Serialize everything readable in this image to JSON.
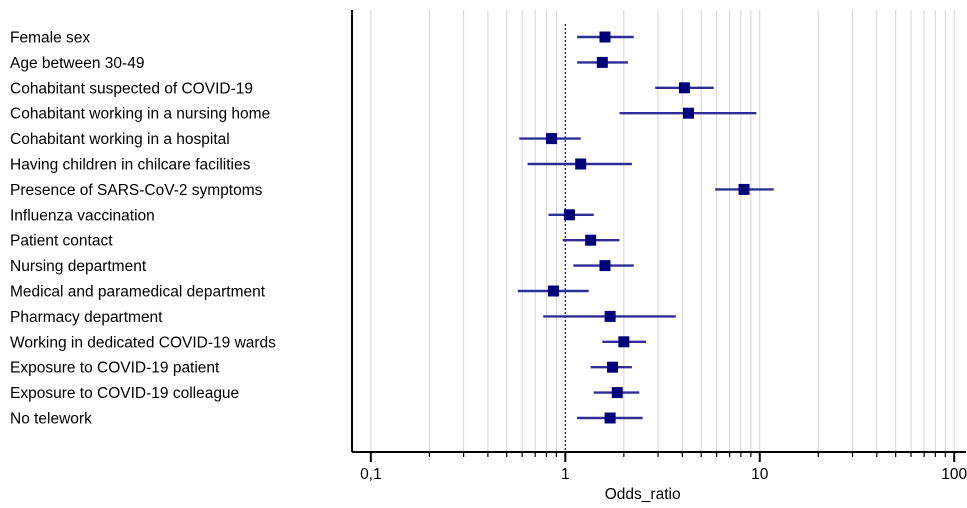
{
  "chart_data": {
    "type": "forest",
    "xlabel": "Odds_ratio",
    "xscale": "log",
    "xlim": [
      0.08,
      115
    ],
    "reference_line": 1,
    "x_ticks": [
      {
        "value": 0.1,
        "label": "0,1"
      },
      {
        "value": 1,
        "label": "1"
      },
      {
        "value": 10,
        "label": "10"
      },
      {
        "value": 100,
        "label": "100"
      }
    ],
    "grid": "vertical log minor lines",
    "colors": {
      "marker": "#00007a",
      "ci_line": "#2e2e96",
      "reference": "#1a1aa0",
      "grid": "#d4d4d4",
      "axis": "#000000"
    },
    "rows": [
      {
        "label": "Female sex",
        "or": 1.6,
        "ci_low": 1.15,
        "ci_high": 2.25
      },
      {
        "label": "Age between 30-49",
        "or": 1.55,
        "ci_low": 1.15,
        "ci_high": 2.1
      },
      {
        "label": "Cohabitant suspected of COVID-19",
        "or": 4.1,
        "ci_low": 2.9,
        "ci_high": 5.8
      },
      {
        "label": "Cohabitant working in a nursing home",
        "or": 4.3,
        "ci_low": 1.9,
        "ci_high": 9.6
      },
      {
        "label": "Cohabitant working in a hospital",
        "or": 0.85,
        "ci_low": 0.58,
        "ci_high": 1.2
      },
      {
        "label": "Having children in chilcare facilities",
        "or": 1.2,
        "ci_low": 0.64,
        "ci_high": 2.2
      },
      {
        "label": "Presence of SARS-CoV-2 symptoms",
        "or": 8.3,
        "ci_low": 5.9,
        "ci_high": 11.8
      },
      {
        "label": "Influenza vaccination",
        "or": 1.05,
        "ci_low": 0.82,
        "ci_high": 1.4
      },
      {
        "label": "Patient contact",
        "or": 1.35,
        "ci_low": 0.97,
        "ci_high": 1.9
      },
      {
        "label": "Nursing department",
        "or": 1.6,
        "ci_low": 1.1,
        "ci_high": 2.25
      },
      {
        "label": "Medical and paramedical department",
        "or": 0.87,
        "ci_low": 0.57,
        "ci_high": 1.32
      },
      {
        "label": "Pharmacy department",
        "or": 1.7,
        "ci_low": 0.77,
        "ci_high": 3.7
      },
      {
        "label": "Working in dedicated COVID-19 wards",
        "or": 2.0,
        "ci_low": 1.55,
        "ci_high": 2.6
      },
      {
        "label": "Exposure to COVID-19 patient",
        "or": 1.75,
        "ci_low": 1.35,
        "ci_high": 2.2
      },
      {
        "label": "Exposure to COVID-19 colleague",
        "or": 1.85,
        "ci_low": 1.4,
        "ci_high": 2.4
      },
      {
        "label": "No telework",
        "or": 1.7,
        "ci_low": 1.15,
        "ci_high": 2.5
      }
    ]
  }
}
